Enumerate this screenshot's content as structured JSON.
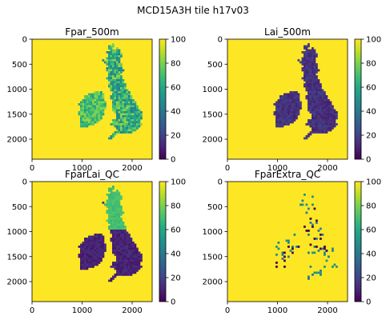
{
  "chart_data": {
    "suptitle": "MCD15A3H tile h17v03",
    "type": "heatmap",
    "colormap": "viridis",
    "panels": [
      {
        "id": "fpar",
        "title": "Fpar_500m",
        "xlim": [
          0,
          2400
        ],
        "ylim": [
          0,
          2400
        ],
        "y_inverted": true,
        "xticks": [
          0,
          1000,
          2000
        ],
        "yticks": [
          0,
          500,
          1000,
          1500,
          2000
        ],
        "background_value": 100,
        "land_value_typical": 55,
        "colorbar": {
          "min": 0,
          "max": 100,
          "ticks": [
            0,
            20,
            40,
            60,
            80,
            100
          ]
        }
      },
      {
        "id": "lai",
        "title": "Lai_500m",
        "xlim": [
          0,
          2400
        ],
        "ylim": [
          0,
          2400
        ],
        "y_inverted": true,
        "xticks": [
          0,
          1000,
          2000
        ],
        "yticks": [
          0,
          500,
          1000,
          1500,
          2000
        ],
        "background_value": 100,
        "land_value_typical": 8,
        "colorbar": {
          "min": 0,
          "max": 100,
          "ticks": [
            0,
            20,
            40,
            60,
            80,
            100
          ]
        }
      },
      {
        "id": "fparlai_qc",
        "title": "FparLai_QC",
        "xlim": [
          0,
          2400
        ],
        "ylim": [
          0,
          2400
        ],
        "y_inverted": true,
        "xticks": [
          0,
          1000,
          2000
        ],
        "yticks": [
          0,
          500,
          1000,
          1500,
          2000
        ],
        "background_value": 100,
        "land_value_typical": 5,
        "north_value": 70,
        "colorbar": {
          "min": 0,
          "max": 100,
          "ticks": [
            0,
            20,
            40,
            60,
            80,
            100
          ]
        }
      },
      {
        "id": "fparextra_qc",
        "title": "FparExtra_QC",
        "xlim": [
          0,
          2400
        ],
        "ylim": [
          0,
          2400
        ],
        "y_inverted": true,
        "xticks": [
          0,
          1000,
          2000
        ],
        "yticks": [
          0,
          500,
          1000,
          1500,
          2000
        ],
        "background_value": 100,
        "land_value_typical": 100,
        "speckle_value": 30,
        "colorbar": {
          "min": 0,
          "max": 100,
          "ticks": [
            0,
            20,
            40,
            60,
            80,
            100
          ]
        }
      }
    ]
  }
}
